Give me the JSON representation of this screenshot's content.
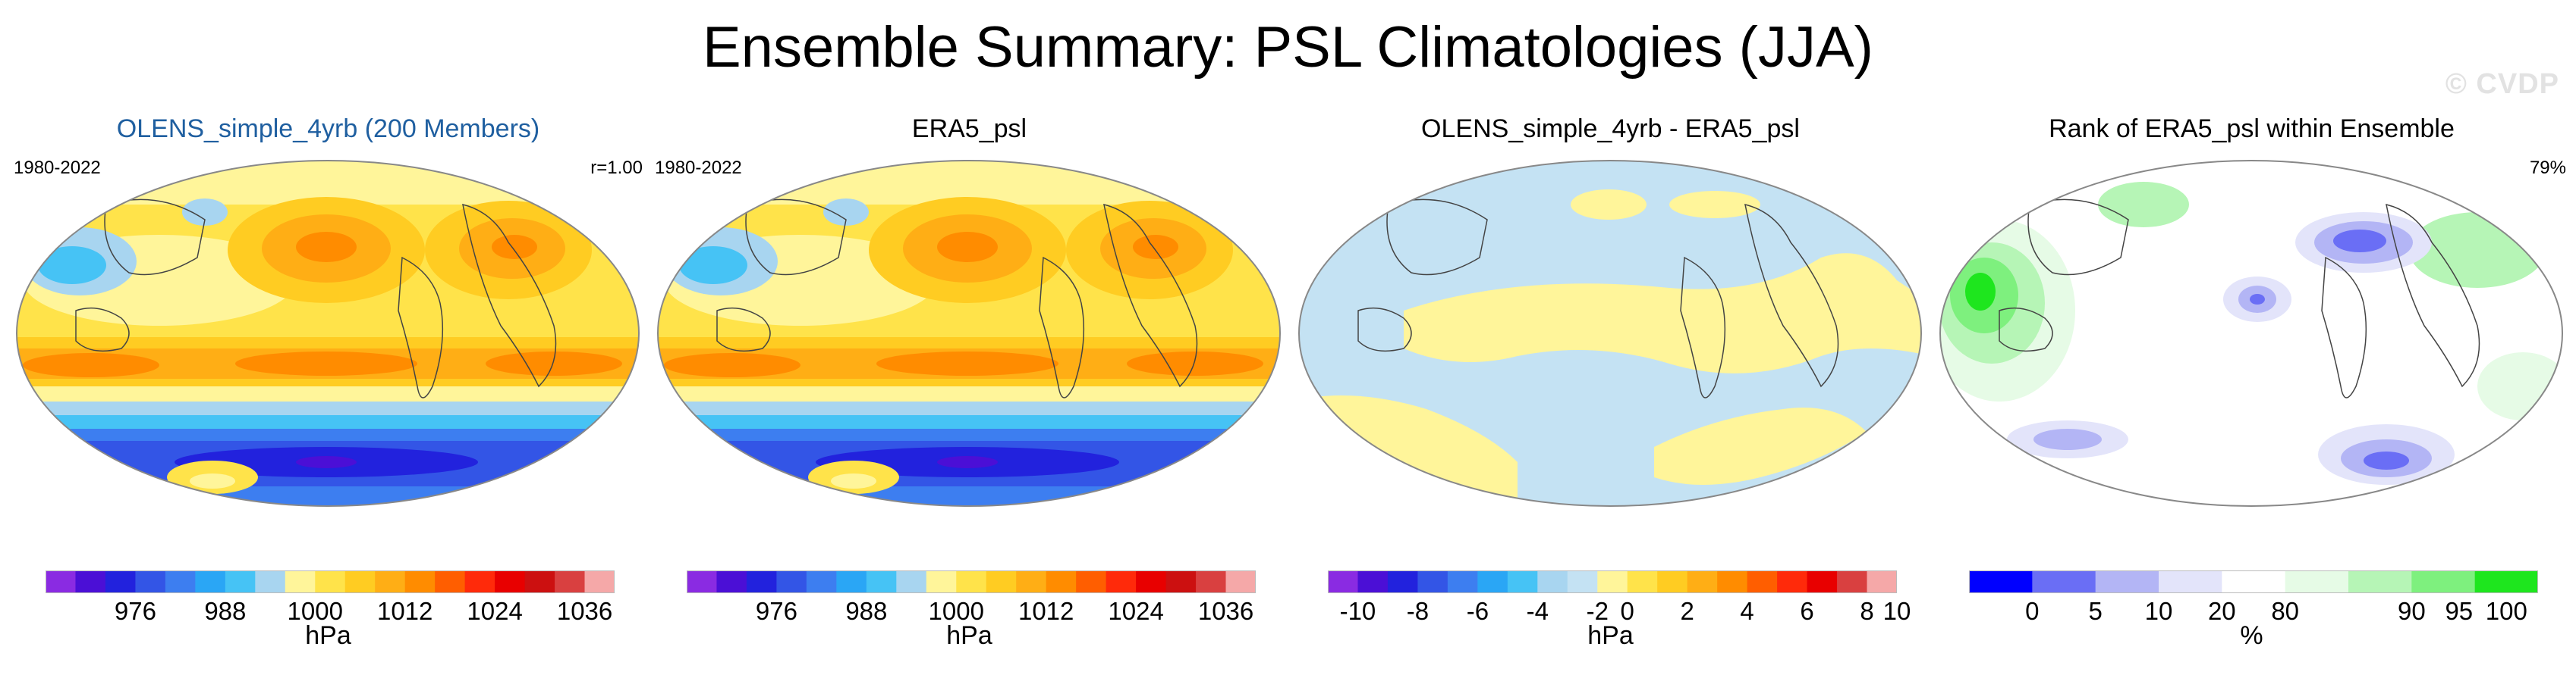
{
  "title": "Ensemble Summary: PSL Climatologies (JJA)",
  "watermark": "© CVDP",
  "panels": [
    {
      "title": "OLENS_simple_4yrb (200 Members)",
      "left_label": "1980-2022",
      "right_label": "r=1.00",
      "colors": [
        "#8a2be2",
        "#4b0fd6",
        "#2222dd",
        "#3355e6",
        "#3d7ef0",
        "#2aa6f5",
        "#46c3f5",
        "#a8d5f0",
        "#fff59a",
        "#ffe34a",
        "#ffcc22",
        "#ffae15",
        "#ff8c00",
        "#ff5e00",
        "#ff2a0a",
        "#e80000",
        "#cc1010",
        "#d94040",
        "#f5a8a8"
      ],
      "ticks": [
        "976",
        "988",
        "1000",
        "1012",
        "1024",
        "1036"
      ],
      "tick_positions": [
        0.1579,
        0.3158,
        0.4737,
        0.6316,
        0.7895,
        0.9474
      ],
      "unit": "hPa"
    },
    {
      "title": "ERA5_psl",
      "left_label": "1980-2022",
      "right_label": "",
      "colors": [
        "#8a2be2",
        "#4b0fd6",
        "#2222dd",
        "#3355e6",
        "#3d7ef0",
        "#2aa6f5",
        "#46c3f5",
        "#a8d5f0",
        "#fff59a",
        "#ffe34a",
        "#ffcc22",
        "#ffae15",
        "#ff8c00",
        "#ff5e00",
        "#ff2a0a",
        "#e80000",
        "#cc1010",
        "#d94040",
        "#f5a8a8"
      ],
      "ticks": [
        "976",
        "988",
        "1000",
        "1012",
        "1024",
        "1036"
      ],
      "tick_positions": [
        0.1579,
        0.3158,
        0.4737,
        0.6316,
        0.7895,
        0.9474
      ],
      "unit": "hPa"
    },
    {
      "title": "OLENS_simple_4yrb - ERA5_psl",
      "left_label": "",
      "right_label": "",
      "colors": [
        "#8a2be2",
        "#4b0fd6",
        "#2222dd",
        "#3355e6",
        "#3d7ef0",
        "#2aa6f5",
        "#46c3f5",
        "#a8d5f0",
        "#c4e2f3",
        "#fff59a",
        "#ffe34a",
        "#ffcc22",
        "#ffae15",
        "#ff8c00",
        "#ff5e00",
        "#ff2a0a",
        "#e80000",
        "#d94040",
        "#f5a8a8"
      ],
      "ticks": [
        "-10",
        "-8",
        "-6",
        "-4",
        "-2",
        "0",
        "2",
        "4",
        "6",
        "8",
        "10"
      ],
      "tick_positions": [
        0.0526,
        0.1579,
        0.2632,
        0.3684,
        0.4737,
        0.5263,
        0.6316,
        0.7368,
        0.8421,
        0.9474,
        1.0
      ],
      "unit": "hPa"
    },
    {
      "title": "Rank of ERA5_psl within Ensemble",
      "left_label": "",
      "right_label": "79%",
      "colors": [
        "#0000ff",
        "#6a6ef5",
        "#b3b5f5",
        "#e3e4fa",
        "#ffffff",
        "#e6fbe6",
        "#b6f5b6",
        "#7ef07e",
        "#1ee61e"
      ],
      "ticks": [
        "0",
        "5",
        "10",
        "20",
        "80",
        "90",
        "95",
        "100"
      ],
      "tick_positions": [
        0.1111,
        0.2222,
        0.3333,
        0.4444,
        0.5556,
        0.7778,
        0.8611,
        0.9444
      ],
      "unit": "%"
    }
  ]
}
